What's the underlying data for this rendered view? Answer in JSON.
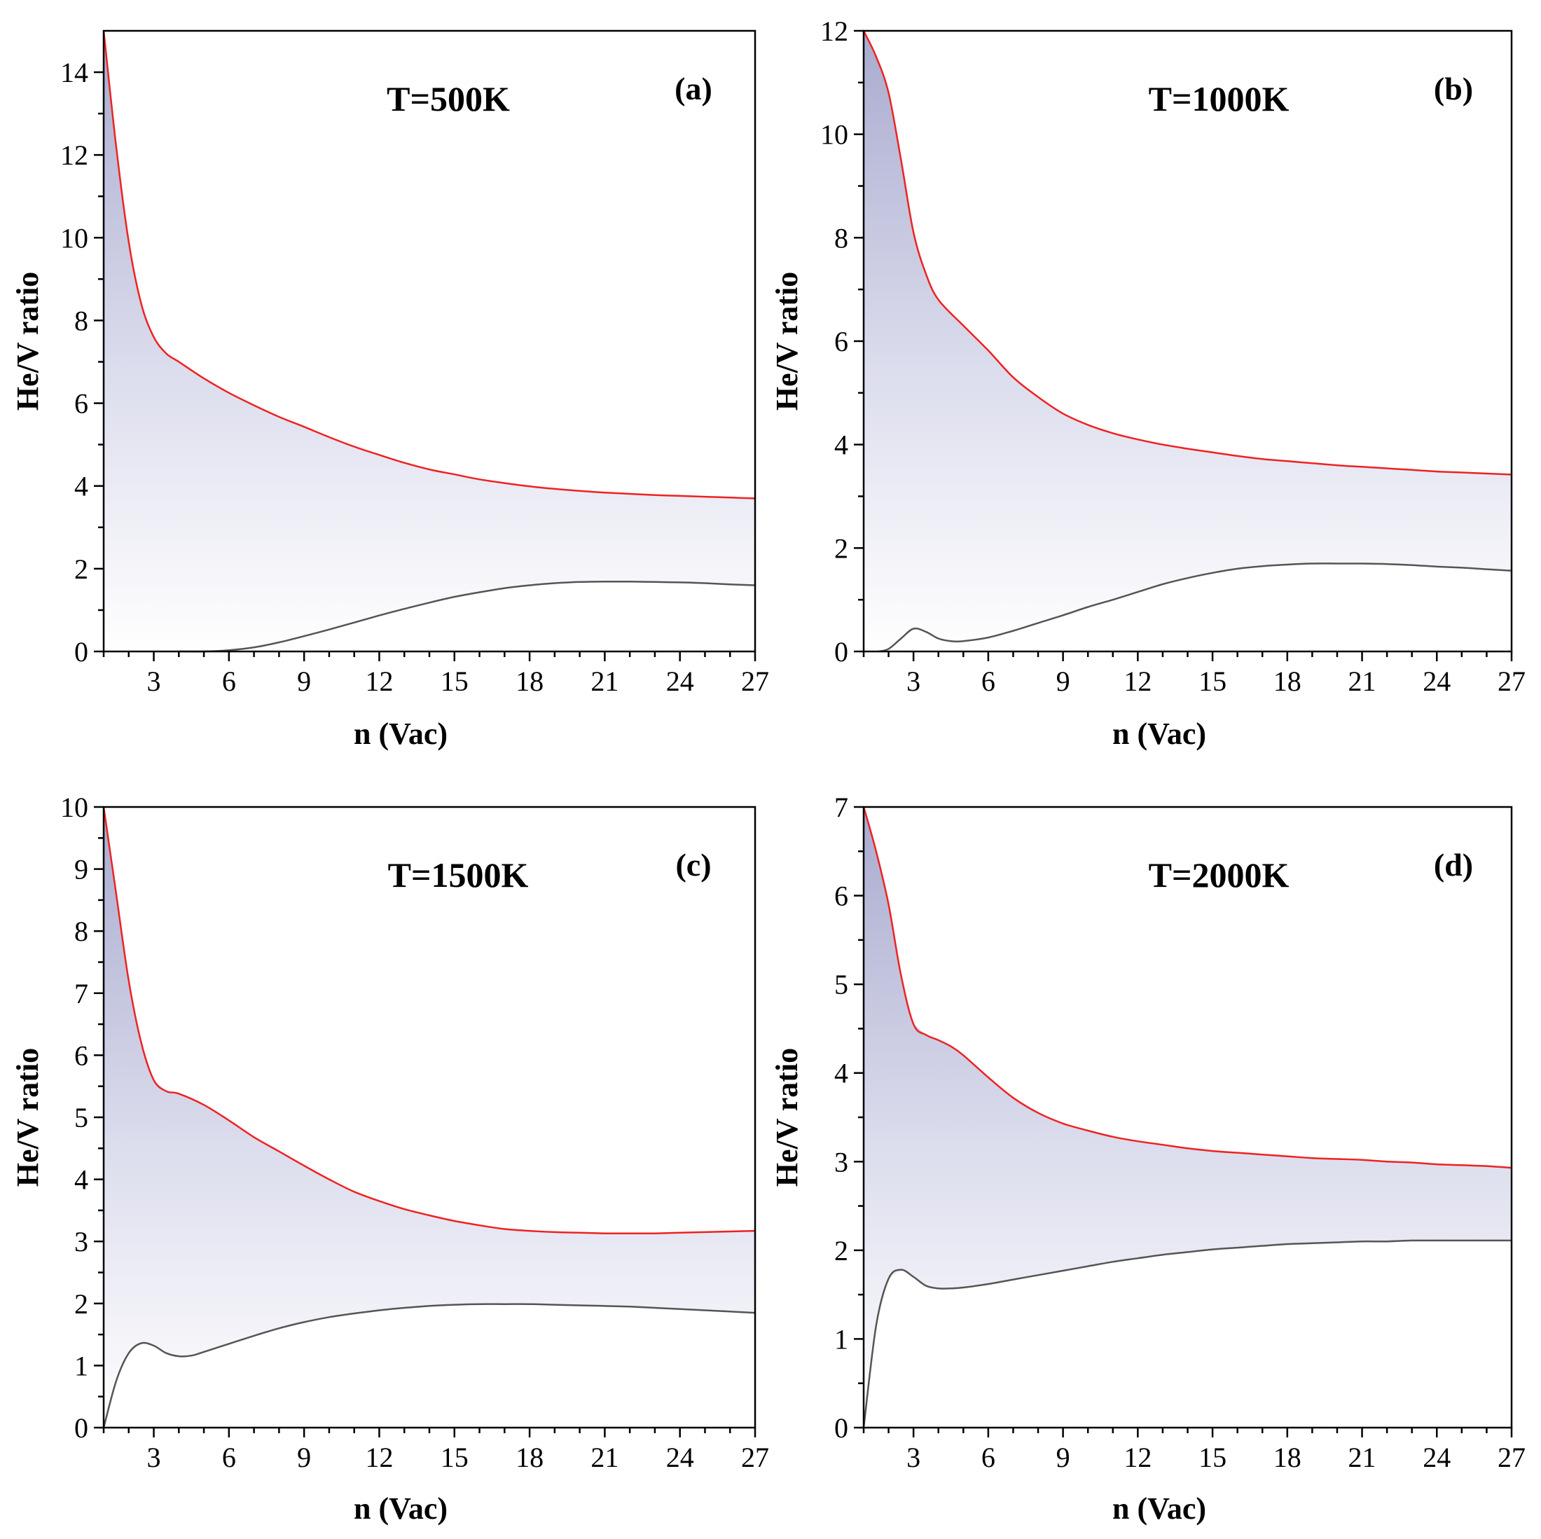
{
  "figure": {
    "background": "#ffffff",
    "fill_top_color": "#a9abcf",
    "fill_bottom_color": "#ffffff"
  },
  "chart_data": [
    {
      "type": "area",
      "panel": "(a)",
      "title": "T=500K",
      "xlabel": "n (Vac)",
      "ylabel": "He/V ratio",
      "xlim": [
        1,
        27
      ],
      "ylim": [
        0,
        15
      ],
      "xticks": [
        3,
        6,
        9,
        12,
        15,
        18,
        21,
        24,
        27
      ],
      "yticks": [
        0,
        2,
        4,
        6,
        8,
        10,
        12,
        14
      ],
      "series": [
        {
          "color": "#ee2222",
          "x": [
            1,
            1.5,
            2,
            2.5,
            3,
            3.5,
            4,
            5,
            6,
            7,
            8,
            9,
            10,
            11,
            12,
            13,
            14,
            15,
            16,
            17,
            18,
            19,
            20,
            21,
            22,
            23,
            24,
            25,
            26,
            27
          ],
          "y": [
            15,
            12.2,
            9.9,
            8.4,
            7.6,
            7.2,
            7.0,
            6.6,
            6.25,
            5.95,
            5.67,
            5.43,
            5.18,
            4.95,
            4.75,
            4.56,
            4.4,
            4.28,
            4.16,
            4.07,
            3.99,
            3.93,
            3.88,
            3.84,
            3.81,
            3.78,
            3.76,
            3.74,
            3.72,
            3.7
          ]
        },
        {
          "color": "#555555",
          "x": [
            4,
            5,
            6,
            7,
            8,
            9,
            10,
            11,
            12,
            13,
            14,
            15,
            16,
            17,
            18,
            19,
            20,
            21,
            22,
            23,
            24,
            25,
            26,
            27
          ],
          "y": [
            0,
            0.0,
            0.03,
            0.1,
            0.22,
            0.37,
            0.53,
            0.7,
            0.87,
            1.03,
            1.18,
            1.32,
            1.43,
            1.53,
            1.6,
            1.65,
            1.68,
            1.69,
            1.69,
            1.68,
            1.67,
            1.65,
            1.62,
            1.6
          ]
        }
      ]
    },
    {
      "type": "area",
      "panel": "(b)",
      "title": "T=1000K",
      "xlabel": "n (Vac)",
      "ylabel": "He/V ratio",
      "xlim": [
        1,
        27
      ],
      "ylim": [
        0,
        12
      ],
      "xticks": [
        3,
        6,
        9,
        12,
        15,
        18,
        21,
        24,
        27
      ],
      "yticks": [
        0,
        2,
        4,
        6,
        8,
        10,
        12
      ],
      "series": [
        {
          "color": "#ee2222",
          "x": [
            1,
            1.5,
            2,
            2.5,
            3,
            3.5,
            4,
            5,
            6,
            7,
            8,
            9,
            10,
            11,
            12,
            13,
            14,
            15,
            16,
            17,
            18,
            19,
            20,
            21,
            22,
            23,
            24,
            25,
            26,
            27
          ],
          "y": [
            12,
            11.5,
            10.8,
            9.5,
            8.1,
            7.3,
            6.8,
            6.3,
            5.82,
            5.3,
            4.92,
            4.6,
            4.38,
            4.22,
            4.1,
            4.0,
            3.92,
            3.85,
            3.78,
            3.72,
            3.68,
            3.64,
            3.6,
            3.57,
            3.54,
            3.51,
            3.48,
            3.46,
            3.44,
            3.42
          ]
        },
        {
          "color": "#555555",
          "x": [
            1.6,
            2,
            2.5,
            3,
            3.5,
            4,
            4.5,
            5,
            6,
            7,
            8,
            9,
            10,
            11,
            12,
            13,
            14,
            15,
            16,
            17,
            18,
            19,
            20,
            21,
            22,
            23,
            24,
            25,
            26,
            27
          ],
          "y": [
            0,
            0.05,
            0.25,
            0.44,
            0.38,
            0.25,
            0.2,
            0.2,
            0.27,
            0.4,
            0.55,
            0.7,
            0.86,
            1.0,
            1.15,
            1.3,
            1.42,
            1.52,
            1.6,
            1.65,
            1.68,
            1.7,
            1.7,
            1.7,
            1.69,
            1.67,
            1.64,
            1.62,
            1.59,
            1.56
          ]
        }
      ]
    },
    {
      "type": "area",
      "panel": "(c)",
      "title": "T=1500K",
      "xlabel": "n (Vac)",
      "ylabel": "He/V ratio",
      "xlim": [
        1,
        27
      ],
      "ylim": [
        0,
        10
      ],
      "xticks": [
        3,
        6,
        9,
        12,
        15,
        18,
        21,
        24,
        27
      ],
      "yticks": [
        0,
        1,
        2,
        3,
        4,
        5,
        6,
        7,
        8,
        9,
        10
      ],
      "series": [
        {
          "color": "#ee2222",
          "x": [
            1,
            1.5,
            2,
            2.5,
            3,
            3.5,
            4,
            5,
            6,
            7,
            8,
            9,
            10,
            11,
            12,
            13,
            14,
            15,
            16,
            17,
            18,
            19,
            20,
            21,
            22,
            23,
            24,
            25,
            26,
            27
          ],
          "y": [
            10,
            8.6,
            7.2,
            6.2,
            5.6,
            5.42,
            5.38,
            5.2,
            4.95,
            4.68,
            4.45,
            4.22,
            4.0,
            3.8,
            3.65,
            3.52,
            3.42,
            3.33,
            3.26,
            3.2,
            3.17,
            3.15,
            3.14,
            3.13,
            3.13,
            3.13,
            3.14,
            3.15,
            3.16,
            3.17
          ]
        },
        {
          "color": "#555555",
          "x": [
            1,
            1.5,
            2,
            2.5,
            3,
            3.5,
            4,
            4.5,
            5,
            6,
            7,
            8,
            9,
            10,
            11,
            12,
            13,
            14,
            15,
            16,
            17,
            18,
            19,
            20,
            21,
            22,
            23,
            24,
            25,
            26,
            27
          ],
          "y": [
            0,
            0.75,
            1.2,
            1.36,
            1.32,
            1.2,
            1.15,
            1.16,
            1.22,
            1.35,
            1.48,
            1.6,
            1.7,
            1.78,
            1.84,
            1.89,
            1.93,
            1.96,
            1.98,
            1.99,
            1.99,
            1.99,
            1.98,
            1.97,
            1.96,
            1.95,
            1.93,
            1.91,
            1.89,
            1.87,
            1.85
          ]
        }
      ]
    },
    {
      "type": "area",
      "panel": "(d)",
      "title": "T=2000K",
      "xlabel": "n (Vac)",
      "ylabel": "He/V ratio",
      "xlim": [
        1,
        27
      ],
      "ylim": [
        0,
        7
      ],
      "xticks": [
        3,
        6,
        9,
        12,
        15,
        18,
        21,
        24,
        27
      ],
      "yticks": [
        0,
        1,
        2,
        3,
        4,
        5,
        6,
        7
      ],
      "series": [
        {
          "color": "#ee2222",
          "x": [
            1,
            1.5,
            2,
            2.5,
            3,
            3.5,
            4,
            4.5,
            5,
            6,
            7,
            8,
            9,
            10,
            11,
            12,
            13,
            14,
            15,
            16,
            17,
            18,
            19,
            20,
            21,
            22,
            23,
            24,
            25,
            26,
            27
          ],
          "y": [
            7,
            6.5,
            5.9,
            5.1,
            4.55,
            4.43,
            4.37,
            4.3,
            4.2,
            3.95,
            3.72,
            3.55,
            3.43,
            3.35,
            3.28,
            3.23,
            3.19,
            3.15,
            3.12,
            3.1,
            3.08,
            3.06,
            3.04,
            3.03,
            3.02,
            3.0,
            2.99,
            2.97,
            2.96,
            2.95,
            2.93
          ]
        },
        {
          "color": "#555555",
          "x": [
            1,
            1.5,
            2,
            2.5,
            3,
            3.5,
            4,
            4.5,
            5,
            6,
            7,
            8,
            9,
            10,
            11,
            12,
            13,
            14,
            15,
            16,
            17,
            18,
            19,
            20,
            21,
            22,
            23,
            24,
            25,
            26,
            27
          ],
          "y": [
            0,
            1.15,
            1.68,
            1.78,
            1.7,
            1.6,
            1.57,
            1.57,
            1.58,
            1.62,
            1.67,
            1.72,
            1.77,
            1.82,
            1.87,
            1.91,
            1.95,
            1.98,
            2.01,
            2.03,
            2.05,
            2.07,
            2.08,
            2.09,
            2.1,
            2.1,
            2.11,
            2.11,
            2.11,
            2.11,
            2.11
          ]
        }
      ]
    }
  ]
}
